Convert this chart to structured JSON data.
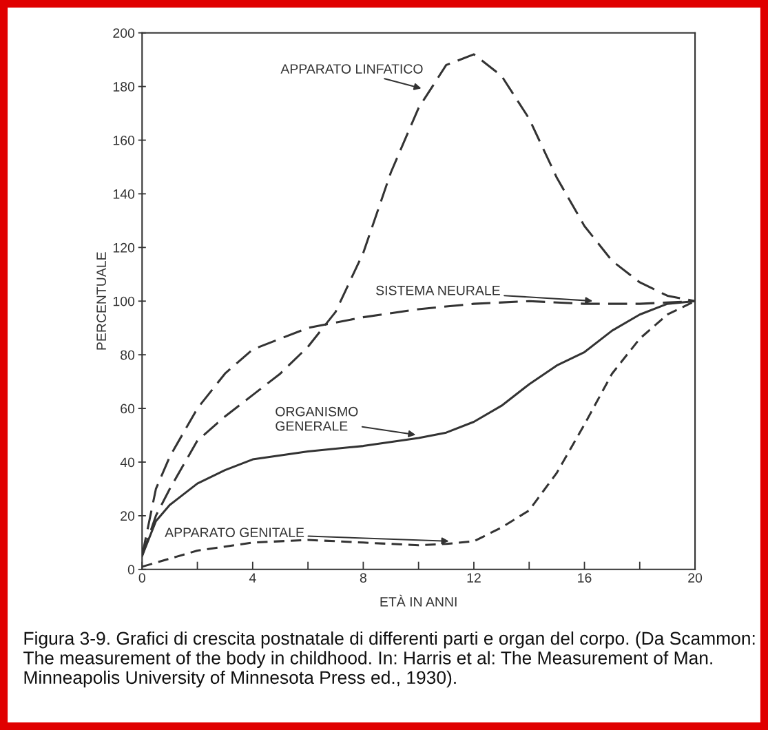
{
  "chart_data": {
    "type": "line",
    "xlabel": "ETÀ IN ANNI",
    "ylabel": "PERCENTUALE",
    "xlim": [
      0,
      20
    ],
    "ylim": [
      0,
      200
    ],
    "xticks": [
      0,
      {
        "value": 2,
        "label": null
      },
      4,
      {
        "value": 6,
        "label": null
      },
      8,
      {
        "value": 10,
        "label": null
      },
      12,
      {
        "value": 14,
        "label": null
      },
      16,
      {
        "value": 18,
        "label": null
      },
      20
    ],
    "yticks": [
      0,
      20,
      40,
      60,
      80,
      100,
      120,
      140,
      160,
      180,
      200
    ],
    "grid": false,
    "legend": false,
    "marker": "none",
    "series": [
      {
        "name": "APPARATO LINFATICO",
        "color": "#333333",
        "line_style": "dashed",
        "x": [
          0,
          0.5,
          1,
          2,
          3,
          4,
          5,
          6,
          7,
          8,
          9,
          10,
          11,
          12,
          13,
          14,
          15,
          16,
          17,
          18,
          19,
          20
        ],
        "values": [
          5,
          20,
          30,
          48,
          57,
          65,
          73,
          83,
          96,
          118,
          148,
          172,
          188,
          192,
          184,
          168,
          146,
          128,
          115,
          107,
          102,
          100
        ]
      },
      {
        "name": "SISTEMA NEURALE",
        "color": "#333333",
        "line_style": "dashed",
        "x": [
          0,
          0.5,
          1,
          2,
          3,
          4,
          6,
          8,
          10,
          12,
          14,
          16,
          18,
          20
        ],
        "values": [
          5,
          30,
          42,
          60,
          73,
          82,
          90,
          94,
          97,
          99,
          100,
          99,
          99,
          100
        ]
      },
      {
        "name": "ORGANISMO\nGENERALE",
        "color": "#333333",
        "line_style": "solid",
        "x": [
          0,
          0.5,
          1,
          2,
          3,
          4,
          6,
          8,
          10,
          11,
          12,
          13,
          14,
          15,
          16,
          17,
          18,
          19,
          20
        ],
        "values": [
          5,
          18,
          24,
          32,
          37,
          41,
          44,
          46,
          49,
          51,
          55,
          61,
          69,
          76,
          81,
          89,
          95,
          99,
          100
        ]
      },
      {
        "name": "APPARATO GENITALE",
        "color": "#333333",
        "line_style": "dotted",
        "x": [
          0,
          2,
          4,
          6,
          8,
          10,
          11,
          12,
          13,
          14,
          15,
          16,
          17,
          18,
          19,
          20
        ],
        "values": [
          1,
          7,
          10,
          11,
          10,
          9,
          9.5,
          10.5,
          15.6,
          22,
          36,
          54,
          73,
          86,
          95,
          100
        ]
      }
    ],
    "annotations": [
      "Figura 3-9. Grafici di crescita postnatale di differenti parti e organ del corpo. (Da Scammon: The measurement of the body in childhood. In: Harris et al: The Measurement of Man. Minneapolis University of Minnesota Press ed., 1930)."
    ]
  }
}
